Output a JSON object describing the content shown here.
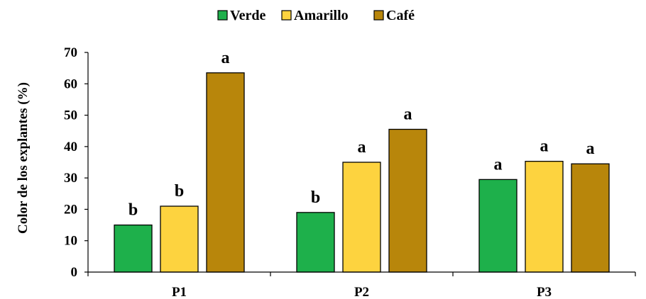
{
  "chart_data": {
    "type": "bar",
    "title": "",
    "xlabel": "",
    "ylabel": "Color de los explantes (%)",
    "ylim": [
      0,
      70
    ],
    "yticks": [
      0,
      10,
      20,
      30,
      40,
      50,
      60,
      70
    ],
    "grid": false,
    "legend_position": "top-center",
    "categories": [
      "P1",
      "P2",
      "P3"
    ],
    "series": [
      {
        "name": "Verde",
        "color": "#1eb04b",
        "values": [
          15,
          19,
          29.5
        ],
        "labels": [
          "b",
          "b",
          "a"
        ]
      },
      {
        "name": "Amarillo",
        "color": "#fdd33f",
        "values": [
          21,
          35,
          35.3
        ],
        "labels": [
          "b",
          "a",
          "a"
        ]
      },
      {
        "name": "Café",
        "color": "#b8860b",
        "values": [
          63.5,
          45.5,
          34.5
        ],
        "labels": [
          "a",
          "a",
          "a"
        ]
      }
    ]
  }
}
